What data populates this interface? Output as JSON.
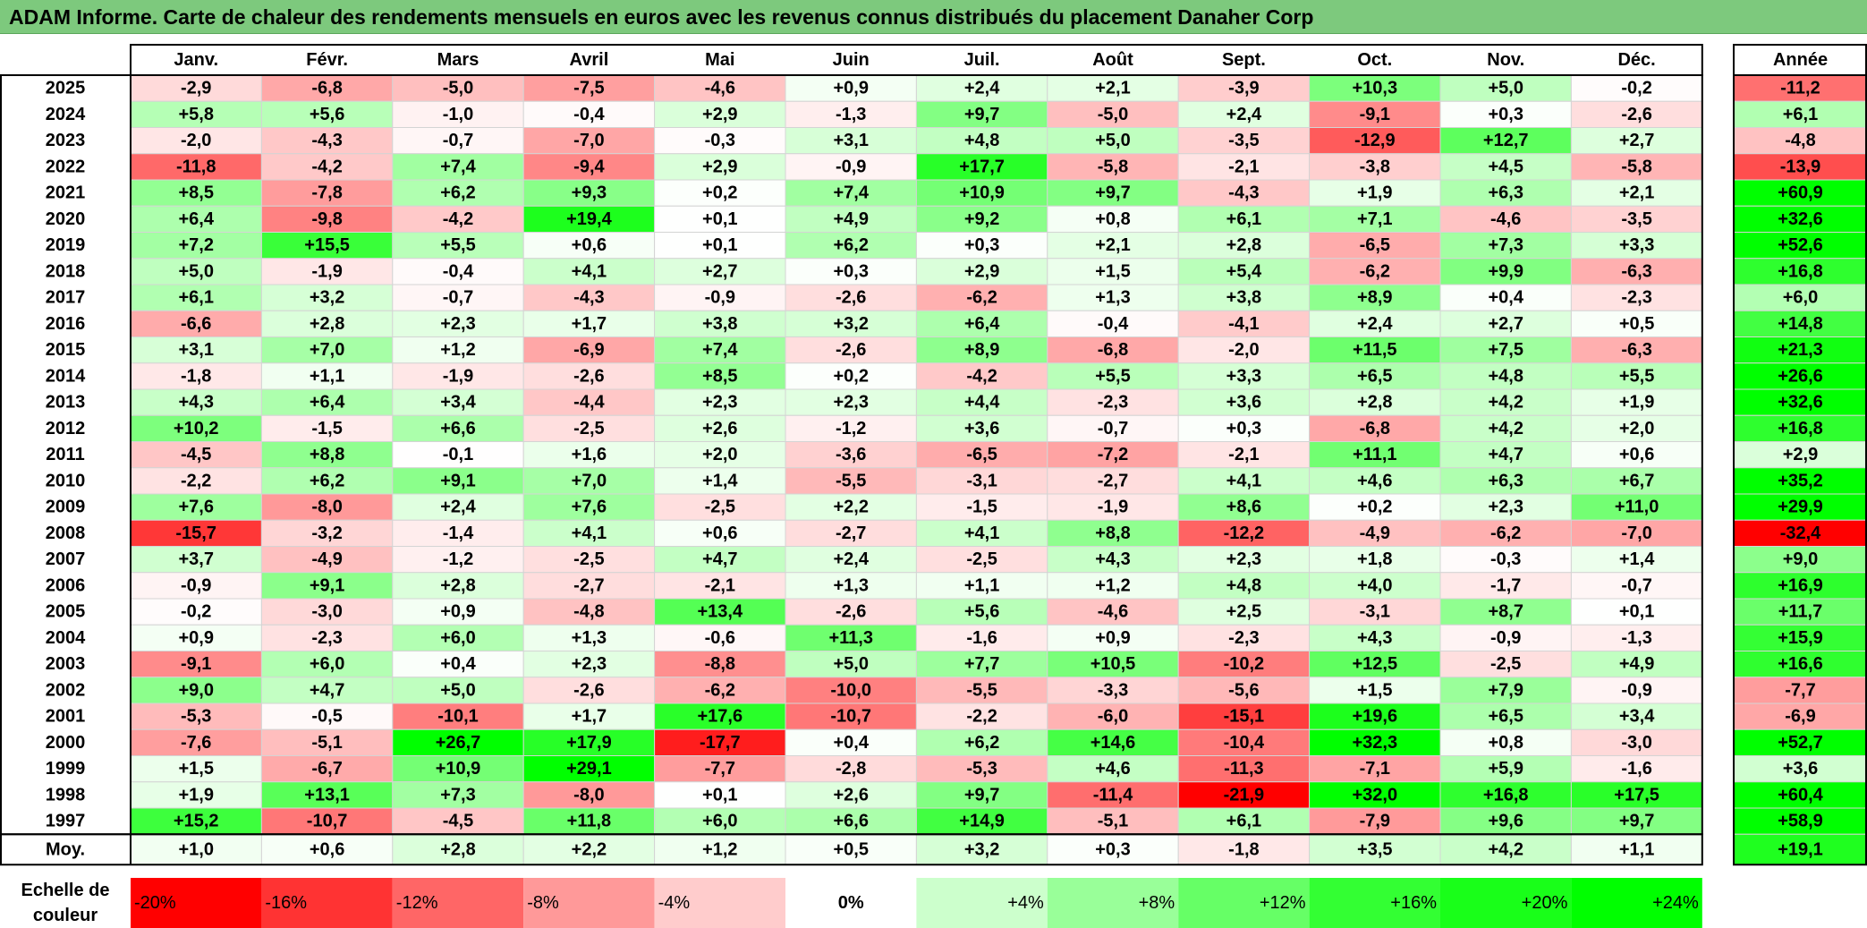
{
  "title": "ADAM Informe. Carte de chaleur des rendements mensuels en euros avec les revenus connus distribués du placement Danaher Corp",
  "chart_data": {
    "type": "heatmap",
    "title": "ADAM Informe. Carte de chaleur des rendements mensuels en euros avec les revenus connus distribués du placement Danaher Corp",
    "columns": [
      "Janv.",
      "Févr.",
      "Mars",
      "Avril",
      "Mai",
      "Juin",
      "Juil.",
      "Août",
      "Sept.",
      "Oct.",
      "Nov.",
      "Déc."
    ],
    "annual_header": "Année",
    "rows": [
      {
        "year": "2025",
        "values": [
          "-2,9",
          "-6,8",
          "-5,0",
          "-7,5",
          "-4,6",
          "+0,9",
          "+2,4",
          "+2,1",
          "-3,9",
          "+10,3",
          "+5,0",
          "-0,2"
        ],
        "annual": "-11,2"
      },
      {
        "year": "2024",
        "values": [
          "+5,8",
          "+5,6",
          "-1,0",
          "-0,4",
          "+2,9",
          "-1,3",
          "+9,7",
          "-5,0",
          "+2,4",
          "-9,1",
          "+0,3",
          "-2,6"
        ],
        "annual": "+6,1"
      },
      {
        "year": "2023",
        "values": [
          "-2,0",
          "-4,3",
          "-0,7",
          "-7,0",
          "-0,3",
          "+3,1",
          "+4,8",
          "+5,0",
          "-3,5",
          "-12,9",
          "+12,7",
          "+2,7"
        ],
        "annual": "-4,8"
      },
      {
        "year": "2022",
        "values": [
          "-11,8",
          "-4,2",
          "+7,4",
          "-9,4",
          "+2,9",
          "-0,9",
          "+17,7",
          "-5,8",
          "-2,1",
          "-3,8",
          "+4,5",
          "-5,8"
        ],
        "annual": "-13,9"
      },
      {
        "year": "2021",
        "values": [
          "+8,5",
          "-7,8",
          "+6,2",
          "+9,3",
          "+0,2",
          "+7,4",
          "+10,9",
          "+9,7",
          "-4,3",
          "+1,9",
          "+6,3",
          "+2,1"
        ],
        "annual": "+60,9"
      },
      {
        "year": "2020",
        "values": [
          "+6,4",
          "-9,8",
          "-4,2",
          "+19,4",
          "+0,1",
          "+4,9",
          "+9,2",
          "+0,8",
          "+6,1",
          "+7,1",
          "-4,6",
          "-3,5"
        ],
        "annual": "+32,6"
      },
      {
        "year": "2019",
        "values": [
          "+7,2",
          "+15,5",
          "+5,5",
          "+0,6",
          "+0,1",
          "+6,2",
          "+0,3",
          "+2,1",
          "+2,8",
          "-6,5",
          "+7,3",
          "+3,3"
        ],
        "annual": "+52,6"
      },
      {
        "year": "2018",
        "values": [
          "+5,0",
          "-1,9",
          "-0,4",
          "+4,1",
          "+2,7",
          "+0,3",
          "+2,9",
          "+1,5",
          "+5,4",
          "-6,2",
          "+9,9",
          "-6,3"
        ],
        "annual": "+16,8"
      },
      {
        "year": "2017",
        "values": [
          "+6,1",
          "+3,2",
          "-0,7",
          "-4,3",
          "-0,9",
          "-2,6",
          "-6,2",
          "+1,3",
          "+3,8",
          "+8,9",
          "+0,4",
          "-2,3"
        ],
        "annual": "+6,0"
      },
      {
        "year": "2016",
        "values": [
          "-6,6",
          "+2,8",
          "+2,3",
          "+1,7",
          "+3,8",
          "+3,2",
          "+6,4",
          "-0,4",
          "-4,1",
          "+2,4",
          "+2,7",
          "+0,5"
        ],
        "annual": "+14,8"
      },
      {
        "year": "2015",
        "values": [
          "+3,1",
          "+7,0",
          "+1,2",
          "-6,9",
          "+7,4",
          "-2,6",
          "+8,9",
          "-6,8",
          "-2,0",
          "+11,5",
          "+7,5",
          "-6,3"
        ],
        "annual": "+21,3"
      },
      {
        "year": "2014",
        "values": [
          "-1,8",
          "+1,1",
          "-1,9",
          "-2,6",
          "+8,5",
          "+0,2",
          "-4,2",
          "+5,5",
          "+3,3",
          "+6,5",
          "+4,8",
          "+5,5"
        ],
        "annual": "+26,6"
      },
      {
        "year": "2013",
        "values": [
          "+4,3",
          "+6,4",
          "+3,4",
          "-4,4",
          "+2,3",
          "+2,3",
          "+4,4",
          "-2,3",
          "+3,6",
          "+2,8",
          "+4,2",
          "+1,9"
        ],
        "annual": "+32,6"
      },
      {
        "year": "2012",
        "values": [
          "+10,2",
          "-1,5",
          "+6,6",
          "-2,5",
          "+2,6",
          "-1,2",
          "+3,6",
          "-0,7",
          "+0,3",
          "-6,8",
          "+4,2",
          "+2,0"
        ],
        "annual": "+16,8"
      },
      {
        "year": "2011",
        "values": [
          "-4,5",
          "+8,8",
          "-0,1",
          "+1,6",
          "+2,0",
          "-3,6",
          "-6,5",
          "-7,2",
          "-2,1",
          "+11,1",
          "+4,7",
          "+0,6"
        ],
        "annual": "+2,9"
      },
      {
        "year": "2010",
        "values": [
          "-2,2",
          "+6,2",
          "+9,1",
          "+7,0",
          "+1,4",
          "-5,5",
          "-3,1",
          "-2,7",
          "+4,1",
          "+4,6",
          "+6,3",
          "+6,7"
        ],
        "annual": "+35,2"
      },
      {
        "year": "2009",
        "values": [
          "+7,6",
          "-8,0",
          "+2,4",
          "+7,6",
          "-2,5",
          "+2,2",
          "-1,5",
          "-1,9",
          "+8,6",
          "+0,2",
          "+2,3",
          "+11,0"
        ],
        "annual": "+29,9"
      },
      {
        "year": "2008",
        "values": [
          "-15,7",
          "-3,2",
          "-1,4",
          "+4,1",
          "+0,6",
          "-2,7",
          "+4,1",
          "+8,8",
          "-12,2",
          "-4,9",
          "-6,2",
          "-7,0"
        ],
        "annual": "-32,4"
      },
      {
        "year": "2007",
        "values": [
          "+3,7",
          "-4,9",
          "-1,2",
          "-2,5",
          "+4,7",
          "+2,4",
          "-2,5",
          "+4,3",
          "+2,3",
          "+1,8",
          "-0,3",
          "+1,4"
        ],
        "annual": "+9,0"
      },
      {
        "year": "2006",
        "values": [
          "-0,9",
          "+9,1",
          "+2,8",
          "-2,7",
          "-2,1",
          "+1,3",
          "+1,1",
          "+1,2",
          "+4,8",
          "+4,0",
          "-1,7",
          "-0,7"
        ],
        "annual": "+16,9"
      },
      {
        "year": "2005",
        "values": [
          "-0,2",
          "-3,0",
          "+0,9",
          "-4,8",
          "+13,4",
          "-2,6",
          "+5,6",
          "-4,6",
          "+2,5",
          "-3,1",
          "+8,7",
          "+0,1"
        ],
        "annual": "+11,7"
      },
      {
        "year": "2004",
        "values": [
          "+0,9",
          "-2,3",
          "+6,0",
          "+1,3",
          "-0,6",
          "+11,3",
          "-1,6",
          "+0,9",
          "-2,3",
          "+4,3",
          "-0,9",
          "-1,3"
        ],
        "annual": "+15,9"
      },
      {
        "year": "2003",
        "values": [
          "-9,1",
          "+6,0",
          "+0,4",
          "+2,3",
          "-8,8",
          "+5,0",
          "+7,7",
          "+10,5",
          "-10,2",
          "+12,5",
          "-2,5",
          "+4,9"
        ],
        "annual": "+16,6"
      },
      {
        "year": "2002",
        "values": [
          "+9,0",
          "+4,7",
          "+5,0",
          "-2,6",
          "-6,2",
          "-10,0",
          "-5,5",
          "-3,3",
          "-5,6",
          "+1,5",
          "+7,9",
          "-0,9"
        ],
        "annual": "-7,7"
      },
      {
        "year": "2001",
        "values": [
          "-5,3",
          "-0,5",
          "-10,1",
          "+1,7",
          "+17,6",
          "-10,7",
          "-2,2",
          "-6,0",
          "-15,1",
          "+19,6",
          "+6,5",
          "+3,4"
        ],
        "annual": "-6,9"
      },
      {
        "year": "2000",
        "values": [
          "-7,6",
          "-5,1",
          "+26,7",
          "+17,9",
          "-17,7",
          "+0,4",
          "+6,2",
          "+14,6",
          "-10,4",
          "+32,3",
          "+0,8",
          "-3,0"
        ],
        "annual": "+52,7"
      },
      {
        "year": "1999",
        "values": [
          "+1,5",
          "-6,7",
          "+10,9",
          "+29,1",
          "-7,7",
          "-2,8",
          "-5,3",
          "+4,6",
          "-11,3",
          "-7,1",
          "+5,9",
          "-1,6"
        ],
        "annual": "+3,6"
      },
      {
        "year": "1998",
        "values": [
          "+1,9",
          "+13,1",
          "+7,3",
          "-8,0",
          "+0,1",
          "+2,6",
          "+9,7",
          "-11,4",
          "-21,9",
          "+32,0",
          "+16,8",
          "+17,5"
        ],
        "annual": "+60,4"
      },
      {
        "year": "1997",
        "values": [
          "+15,2",
          "-10,7",
          "-4,5",
          "+11,8",
          "+6,0",
          "+6,6",
          "+14,9",
          "-5,1",
          "+6,1",
          "-7,9",
          "+9,6",
          "+9,7"
        ],
        "annual": "+58,9"
      }
    ],
    "average_label": "Moy.",
    "average_values": [
      "+1,0",
      "+0,6",
      "+2,8",
      "+2,2",
      "+1,2",
      "+0,5",
      "+3,2",
      "+0,3",
      "-1,8",
      "+3,5",
      "+4,2",
      "+1,1"
    ],
    "average_annual": "+19,1",
    "scale_label_line1": "Echelle de",
    "scale_label_line2": "couleur",
    "scale": [
      {
        "label": "-20%",
        "value": -20,
        "color": "#ff0000"
      },
      {
        "label": "-16%",
        "value": -16,
        "color": "#ff3333"
      },
      {
        "label": "-12%",
        "value": -12,
        "color": "#ff6666"
      },
      {
        "label": "-8%",
        "value": -8,
        "color": "#ff9999"
      },
      {
        "label": "-4%",
        "value": -4,
        "color": "#ffcccc"
      },
      {
        "label": "0%",
        "value": 0,
        "color": "#ffffff"
      },
      {
        "label": "+4%",
        "value": 4,
        "color": "#ccffcc"
      },
      {
        "label": "+8%",
        "value": 8,
        "color": "#99ff99"
      },
      {
        "label": "+12%",
        "value": 12,
        "color": "#66ff66"
      },
      {
        "label": "+16%",
        "value": 16,
        "color": "#33ff33"
      },
      {
        "label": "+20%",
        "value": 20,
        "color": "#19ff19"
      },
      {
        "label": "+24%",
        "value": 24,
        "color": "#00ff00"
      }
    ]
  }
}
